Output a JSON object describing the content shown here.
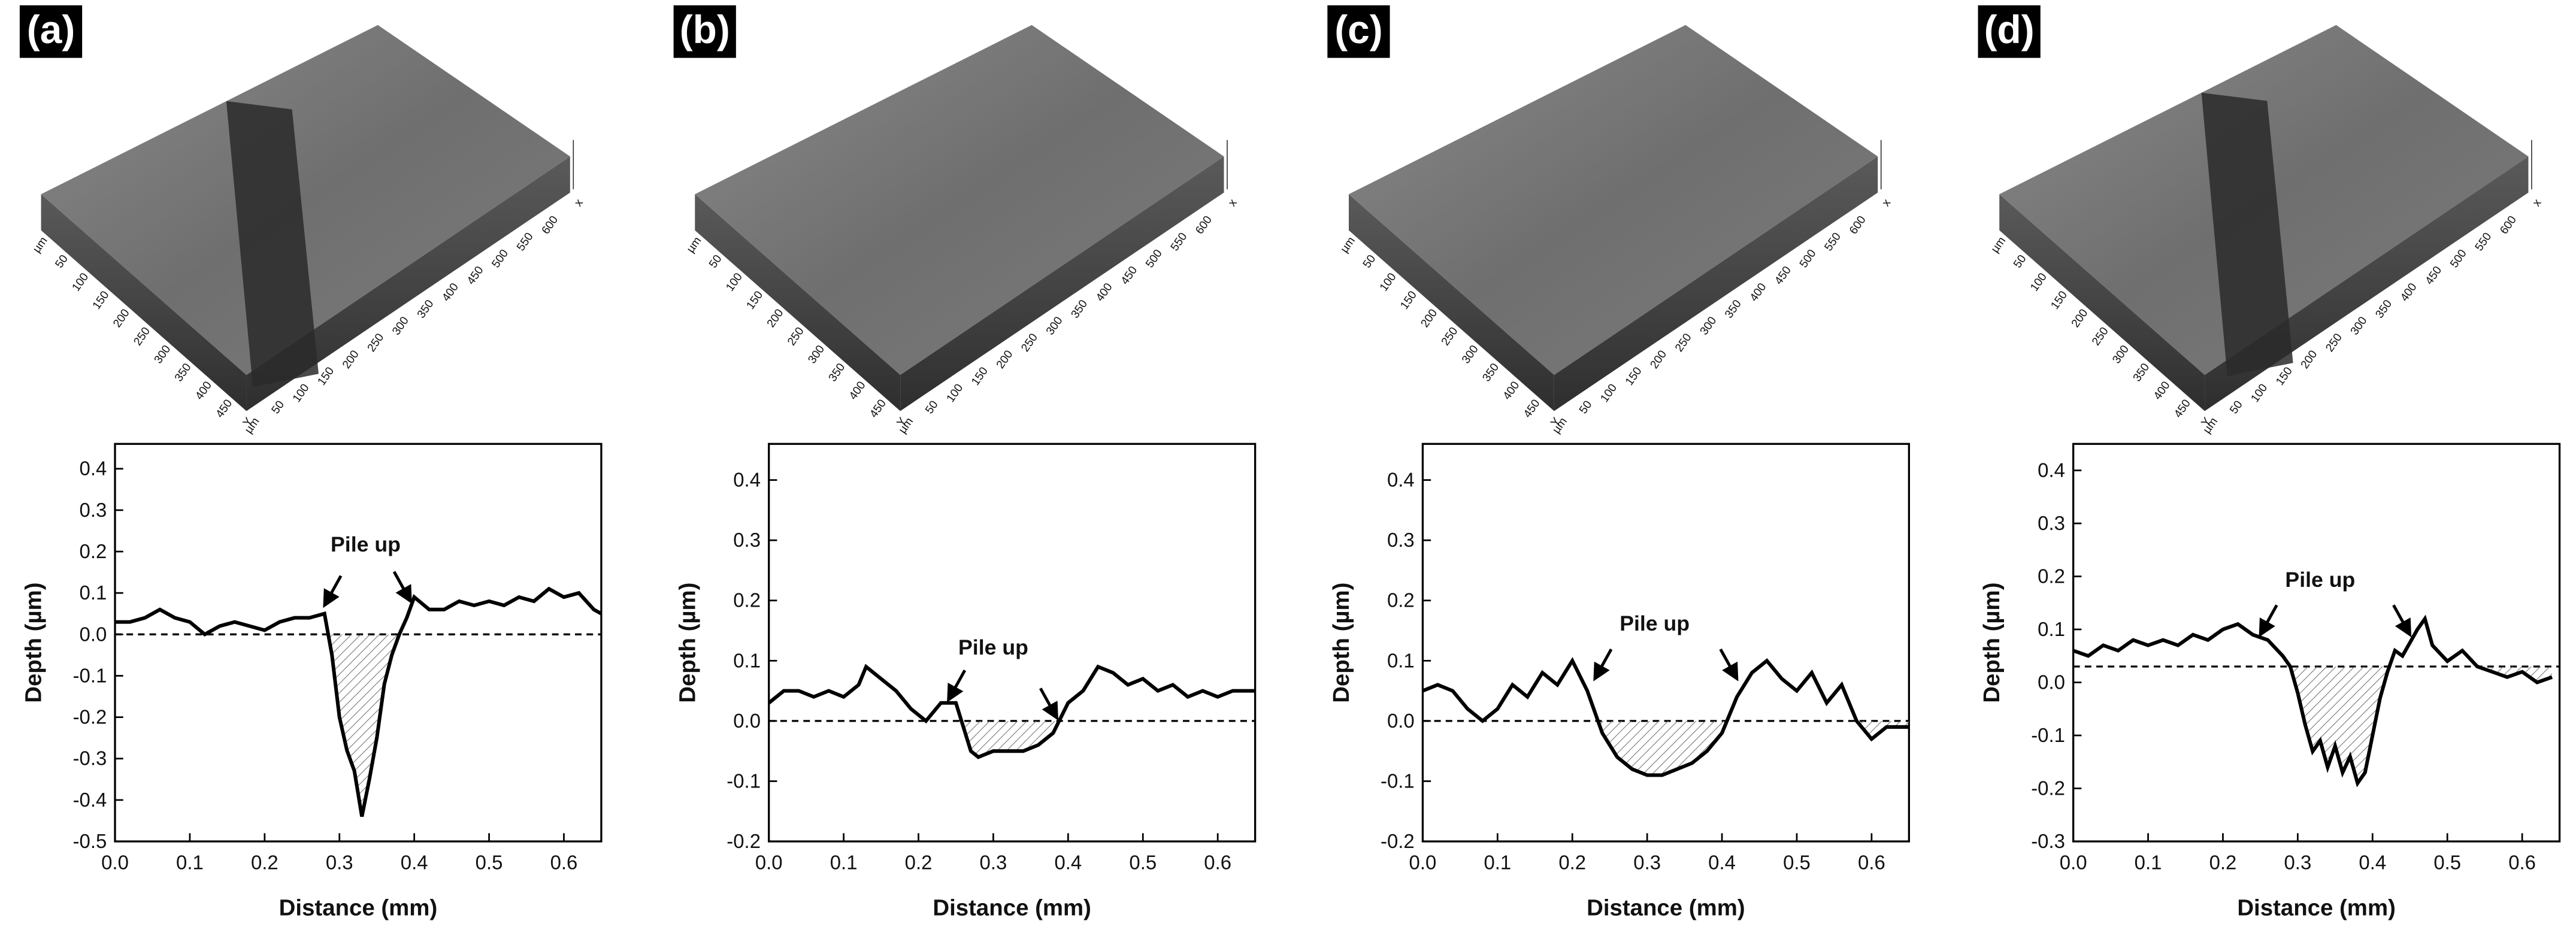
{
  "chart_data": [
    {
      "type": "line",
      "panel": "(a)",
      "xlabel": "Distance (mm)",
      "ylabel": "Depth (µm)",
      "surface": {
        "x_labels": [
          "µm",
          "50",
          "100",
          "150",
          "200",
          "250",
          "300",
          "350",
          "400",
          "450",
          "500",
          "550",
          "600",
          "x"
        ],
        "y_labels": [
          "µm",
          "50",
          "100",
          "150",
          "200",
          "250",
          "300",
          "350",
          "400",
          "450",
          "Y"
        ]
      },
      "x": [
        0,
        0.02,
        0.04,
        0.06,
        0.08,
        0.1,
        0.12,
        0.14,
        0.16,
        0.18,
        0.2,
        0.22,
        0.24,
        0.26,
        0.28,
        0.29,
        0.3,
        0.31,
        0.32,
        0.33,
        0.34,
        0.35,
        0.36,
        0.37,
        0.38,
        0.39,
        0.4,
        0.42,
        0.44,
        0.46,
        0.48,
        0.5,
        0.52,
        0.54,
        0.56,
        0.58,
        0.6,
        0.62,
        0.64,
        0.65
      ],
      "series": [
        {
          "color": "#000000",
          "values": [
            0.03,
            0.03,
            0.04,
            0.06,
            0.04,
            0.03,
            0.0,
            0.02,
            0.03,
            0.02,
            0.01,
            0.03,
            0.04,
            0.04,
            0.05,
            -0.05,
            -0.2,
            -0.28,
            -0.33,
            -0.44,
            -0.35,
            -0.25,
            -0.12,
            -0.05,
            0.0,
            0.04,
            0.09,
            0.06,
            0.06,
            0.08,
            0.07,
            0.08,
            0.07,
            0.09,
            0.08,
            0.11,
            0.09,
            0.1,
            0.06,
            0.05
          ]
        }
      ],
      "baseline": 0,
      "annotation": {
        "text": "Pile up",
        "x": 0.335,
        "y": 0.2,
        "arrow_to": [
          [
            0.28,
            0.07
          ],
          [
            0.395,
            0.08
          ]
        ]
      },
      "xlim": [
        0,
        0.65
      ],
      "ylim": [
        -0.5,
        0.46
      ],
      "xticks": [
        {
          "value": 0,
          "label": "0.0"
        },
        0.1,
        0.2,
        0.3,
        0.4,
        0.5,
        0.6
      ],
      "yticks": [
        -0.5,
        -0.4,
        -0.3,
        -0.2,
        -0.1,
        {
          "value": 0,
          "label": "0.0"
        },
        0.1,
        0.2,
        0.3,
        0.4
      ]
    },
    {
      "type": "line",
      "panel": "(b)",
      "xlabel": "Distance (mm)",
      "ylabel": "Depth (µm)",
      "surface": {
        "x_labels": [
          "µm",
          "50",
          "100",
          "150",
          "200",
          "250",
          "300",
          "350",
          "400",
          "450",
          "500",
          "550",
          "600",
          "x"
        ],
        "y_labels": [
          "µm",
          "50",
          "100",
          "150",
          "200",
          "250",
          "300",
          "350",
          "400",
          "450",
          "Y"
        ]
      },
      "x": [
        0,
        0.02,
        0.04,
        0.06,
        0.08,
        0.1,
        0.12,
        0.13,
        0.15,
        0.17,
        0.19,
        0.21,
        0.23,
        0.25,
        0.27,
        0.28,
        0.3,
        0.32,
        0.34,
        0.36,
        0.38,
        0.4,
        0.42,
        0.44,
        0.46,
        0.48,
        0.5,
        0.52,
        0.54,
        0.56,
        0.58,
        0.6,
        0.62,
        0.65
      ],
      "series": [
        {
          "color": "#000000",
          "values": [
            0.03,
            0.05,
            0.05,
            0.04,
            0.05,
            0.04,
            0.06,
            0.09,
            0.07,
            0.05,
            0.02,
            0.0,
            0.03,
            0.03,
            -0.05,
            -0.06,
            -0.05,
            -0.05,
            -0.05,
            -0.04,
            -0.02,
            0.03,
            0.05,
            0.09,
            0.08,
            0.06,
            0.07,
            0.05,
            0.06,
            0.04,
            0.05,
            0.04,
            0.05,
            0.05
          ]
        }
      ],
      "baseline": 0,
      "annotation": {
        "text": "Pile up",
        "x": 0.3,
        "y": 0.11,
        "arrow_to": [
          [
            0.24,
            0.035
          ],
          [
            0.385,
            0.005
          ]
        ]
      },
      "xlim": [
        0,
        0.65
      ],
      "ylim": [
        -0.2,
        0.46
      ],
      "xticks": [
        {
          "value": 0,
          "label": "0.0"
        },
        0.1,
        0.2,
        0.3,
        0.4,
        0.5,
        0.6
      ],
      "yticks": [
        -0.2,
        -0.1,
        {
          "value": 0,
          "label": "0.0"
        },
        0.1,
        0.2,
        0.3,
        0.4
      ]
    },
    {
      "type": "line",
      "panel": "(c)",
      "xlabel": "Distance (mm)",
      "ylabel": "Depth (µm)",
      "surface": {
        "x_labels": [
          "µm",
          "50",
          "100",
          "150",
          "200",
          "250",
          "300",
          "350",
          "400",
          "450",
          "500",
          "550",
          "600",
          "x"
        ],
        "y_labels": [
          "µm",
          "50",
          "100",
          "150",
          "200",
          "250",
          "300",
          "350",
          "400",
          "450",
          "Y"
        ]
      },
      "x": [
        0,
        0.02,
        0.04,
        0.06,
        0.08,
        0.1,
        0.12,
        0.14,
        0.16,
        0.18,
        0.2,
        0.22,
        0.24,
        0.26,
        0.28,
        0.3,
        0.32,
        0.34,
        0.36,
        0.38,
        0.4,
        0.42,
        0.44,
        0.46,
        0.48,
        0.5,
        0.52,
        0.54,
        0.56,
        0.58,
        0.6,
        0.62,
        0.65
      ],
      "series": [
        {
          "color": "#000000",
          "values": [
            0.05,
            0.06,
            0.05,
            0.02,
            0.0,
            0.02,
            0.06,
            0.04,
            0.08,
            0.06,
            0.1,
            0.05,
            -0.02,
            -0.06,
            -0.08,
            -0.09,
            -0.09,
            -0.08,
            -0.07,
            -0.05,
            -0.02,
            0.04,
            0.08,
            0.1,
            0.07,
            0.05,
            0.08,
            0.03,
            0.06,
            0.0,
            -0.03,
            -0.01,
            -0.01
          ]
        }
      ],
      "baseline": 0,
      "annotation": {
        "text": "Pile up",
        "x": 0.31,
        "y": 0.15,
        "arrow_to": [
          [
            0.23,
            0.07
          ],
          [
            0.42,
            0.07
          ]
        ]
      },
      "xlim": [
        0,
        0.65
      ],
      "ylim": [
        -0.2,
        0.46
      ],
      "xticks": [
        {
          "value": 0,
          "label": "0.0"
        },
        0.1,
        0.2,
        0.3,
        0.4,
        0.5,
        0.6
      ],
      "yticks": [
        -0.2,
        -0.1,
        {
          "value": 0,
          "label": "0.0"
        },
        0.1,
        0.2,
        0.3,
        0.4
      ]
    },
    {
      "type": "line",
      "panel": "(d)",
      "xlabel": "Distance (mm)",
      "ylabel": "Depth (µm)",
      "surface": {
        "x_labels": [
          "µm",
          "50",
          "100",
          "150",
          "200",
          "250",
          "300",
          "350",
          "400",
          "450",
          "500",
          "550",
          "600",
          "x"
        ],
        "y_labels": [
          "µm",
          "50",
          "100",
          "150",
          "200",
          "250",
          "300",
          "350",
          "400",
          "450",
          "Y"
        ]
      },
      "x": [
        0,
        0.02,
        0.04,
        0.06,
        0.08,
        0.1,
        0.12,
        0.14,
        0.16,
        0.18,
        0.2,
        0.22,
        0.24,
        0.26,
        0.28,
        0.29,
        0.3,
        0.31,
        0.32,
        0.33,
        0.34,
        0.35,
        0.36,
        0.37,
        0.38,
        0.39,
        0.4,
        0.41,
        0.42,
        0.43,
        0.44,
        0.46,
        0.47,
        0.48,
        0.5,
        0.52,
        0.54,
        0.56,
        0.58,
        0.6,
        0.62,
        0.64
      ],
      "series": [
        {
          "color": "#000000",
          "values": [
            0.06,
            0.05,
            0.07,
            0.06,
            0.08,
            0.07,
            0.08,
            0.07,
            0.09,
            0.08,
            0.1,
            0.11,
            0.09,
            0.08,
            0.05,
            0.03,
            -0.02,
            -0.08,
            -0.13,
            -0.11,
            -0.16,
            -0.12,
            -0.17,
            -0.14,
            -0.19,
            -0.17,
            -0.1,
            -0.03,
            0.02,
            0.06,
            0.05,
            0.1,
            0.12,
            0.07,
            0.04,
            0.06,
            0.03,
            0.02,
            0.01,
            0.02,
            0.0,
            0.01
          ]
        }
      ],
      "baseline": 0.03,
      "annotation": {
        "text": "Pile up",
        "x": 0.33,
        "y": 0.18,
        "arrow_to": [
          [
            0.25,
            0.09
          ],
          [
            0.45,
            0.09
          ]
        ]
      },
      "xlim": [
        0,
        0.65
      ],
      "ylim": [
        -0.3,
        0.45
      ],
      "xticks": [
        {
          "value": 0,
          "label": "0.0"
        },
        0.1,
        0.2,
        0.3,
        0.4,
        0.5,
        0.6
      ],
      "yticks": [
        -0.3,
        -0.2,
        -0.1,
        {
          "value": 0,
          "label": "0.0"
        },
        0.1,
        0.2,
        0.3,
        0.4
      ]
    }
  ]
}
